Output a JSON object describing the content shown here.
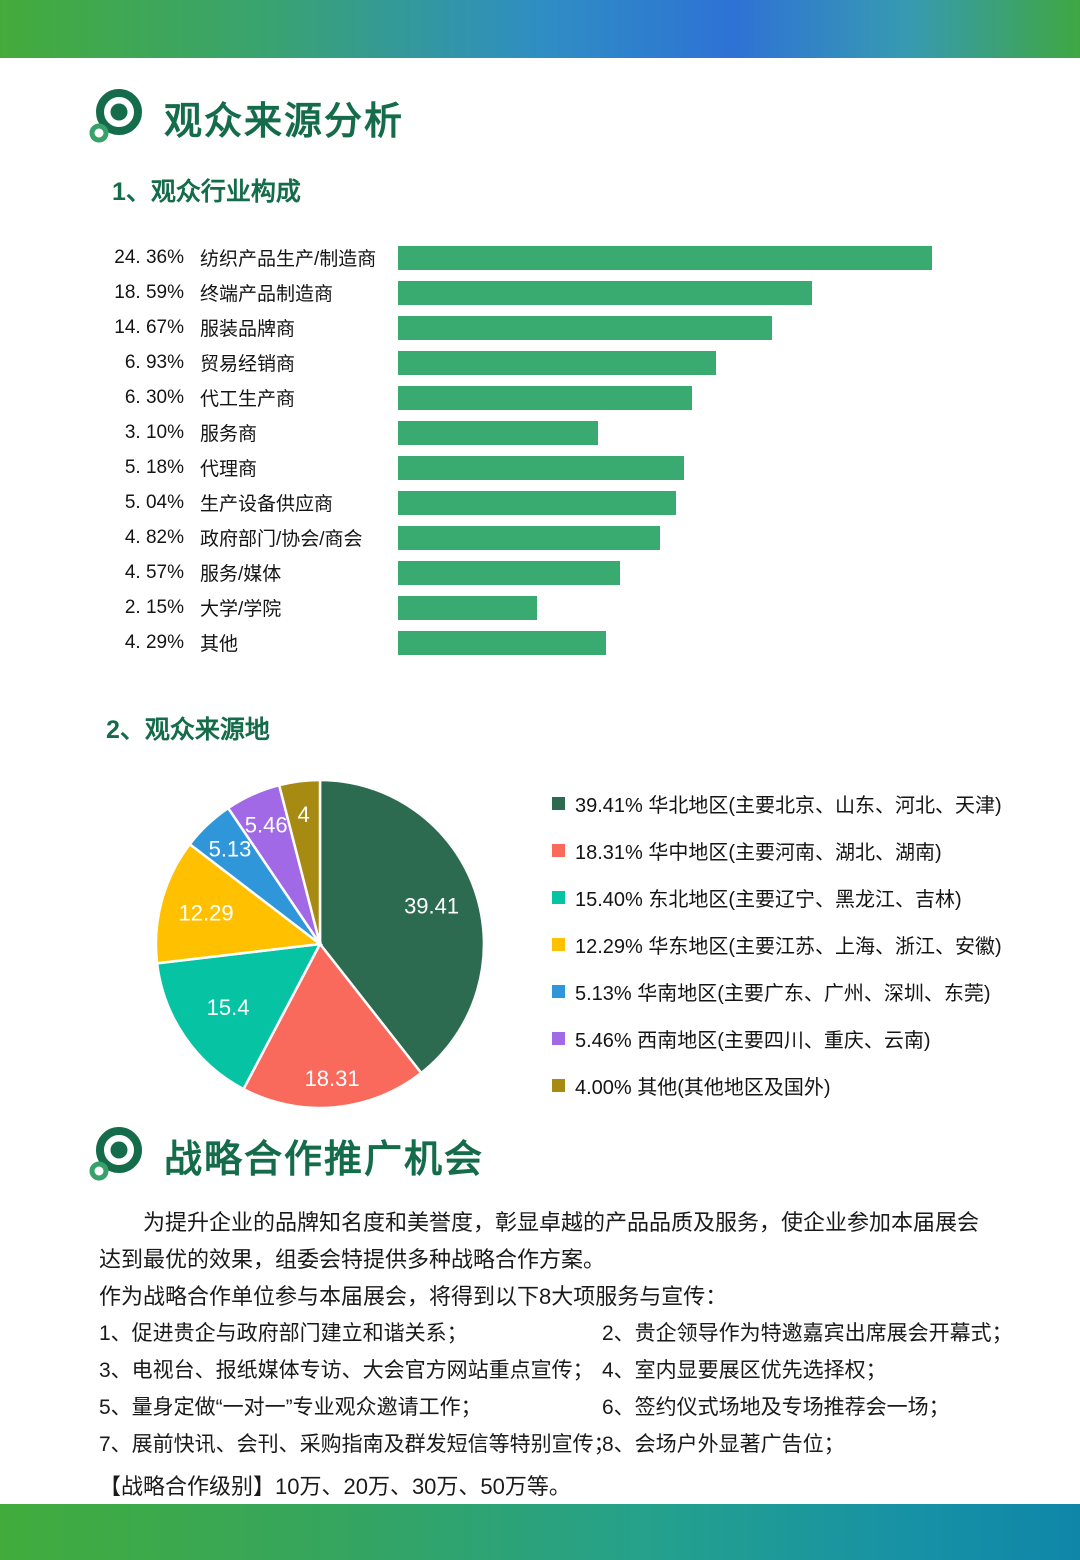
{
  "theme": {
    "header_green": "#156c4b",
    "bar_green": "#3aab70",
    "text_color": "#1a1a1a",
    "top_bar_gradient": [
      "#44ab3b",
      "#2f8ec3",
      "#2e72d5",
      "#3fa742"
    ],
    "bottom_bar_gradient": [
      "#41ac3c",
      "#25a18c",
      "#0f86a8"
    ]
  },
  "audience_section": {
    "title": "观众来源分析",
    "industry": {
      "heading": "1、观众行业构成"
    },
    "region": {
      "heading": "2、观众来源地"
    }
  },
  "coop_section": {
    "title": "战略合作推广机会",
    "intro": "为提升企业的品牌知名度和美誉度，彰显卓越的产品品质及服务，使企业参加本届展会达到最优的效果，组委会特提供多种战略合作方案。",
    "lead": "作为战略合作单位参与本届展会，将得到以下8大项服务与宣传：",
    "services": [
      "1、促进贵企与政府部门建立和谐关系；",
      "2、贵企领导作为特邀嘉宾出席展会开幕式；",
      "3、电视台、报纸媒体专访、大会官方网站重点宣传；",
      "4、室内显要展区优先选择权；",
      "5、量身定做“一对一”专业观众邀请工作；",
      "6、签约仪式场地及专场推荐会一场；",
      "7、展前快讯、会刊、采购指南及群发短信等特别宣传；",
      "8、会场户外显著广告位；"
    ],
    "levels": "【战略合作级别】10万、20万、30万、50万等。"
  },
  "chart_data": [
    {
      "type": "bar",
      "orientation": "horizontal",
      "title": "1、观众行业构成",
      "categories": [
        "纺织产品生产/制造商",
        "终端产品制造商",
        "服装品牌商",
        "贸易经销商",
        "代工生产商",
        "服务商",
        "代理商",
        "生产设备供应商",
        "政府部门/协会/商会",
        "服务/媒体",
        "大学/学院",
        "其他"
      ],
      "values": [
        24.36,
        18.59,
        14.67,
        6.93,
        6.3,
        3.1,
        5.18,
        5.04,
        4.82,
        4.57,
        2.15,
        4.29
      ],
      "value_labels": [
        "24. 36%",
        "18. 59%",
        "14. 67%",
        "6. 93%",
        "6. 30%",
        "3. 10%",
        "5. 18%",
        "5. 04%",
        "4. 82%",
        "4. 57%",
        "2. 15%",
        "4. 29%"
      ],
      "bar_color": "#3aab70",
      "bar_length_pct_of_max": [
        100,
        77.5,
        70,
        59.5,
        55,
        37.5,
        53.5,
        52,
        49,
        41.5,
        26,
        39
      ],
      "note": "bar lengths as drawn are not strictly proportional to the percentage values"
    },
    {
      "type": "pie",
      "title": "2、观众来源地",
      "values": [
        39.41,
        18.31,
        15.4,
        12.29,
        5.13,
        5.46,
        4.0
      ],
      "slice_labels": [
        "39.41",
        "18.31",
        "15.4",
        "12.29",
        "5.13",
        "5.46",
        "4"
      ],
      "colors": [
        "#2d6b51",
        "#f96a5c",
        "#06c3a3",
        "#ffc000",
        "#2f97d9",
        "#a169e6",
        "#a78a12"
      ],
      "legend": [
        "39.41% 华北地区(主要北京、山东、河北、天津)",
        "18.31% 华中地区(主要河南、湖北、湖南)",
        "15.40% 东北地区(主要辽宁、黑龙江、吉林)",
        "12.29% 华东地区(主要江苏、上海、浙江、安徽)",
        "5.13% 华南地区(主要广东、广州、深圳、东莞)",
        "5.46% 西南地区(主要四川、重庆、云南)",
        "4.00% 其他(其他地区及国外)"
      ],
      "start_angle": "12 o'clock, clockwise",
      "legend_position": "right",
      "label_radius": [
        0.72,
        0.82,
        0.68,
        0.72,
        0.8,
        0.8,
        0.8
      ]
    }
  ]
}
